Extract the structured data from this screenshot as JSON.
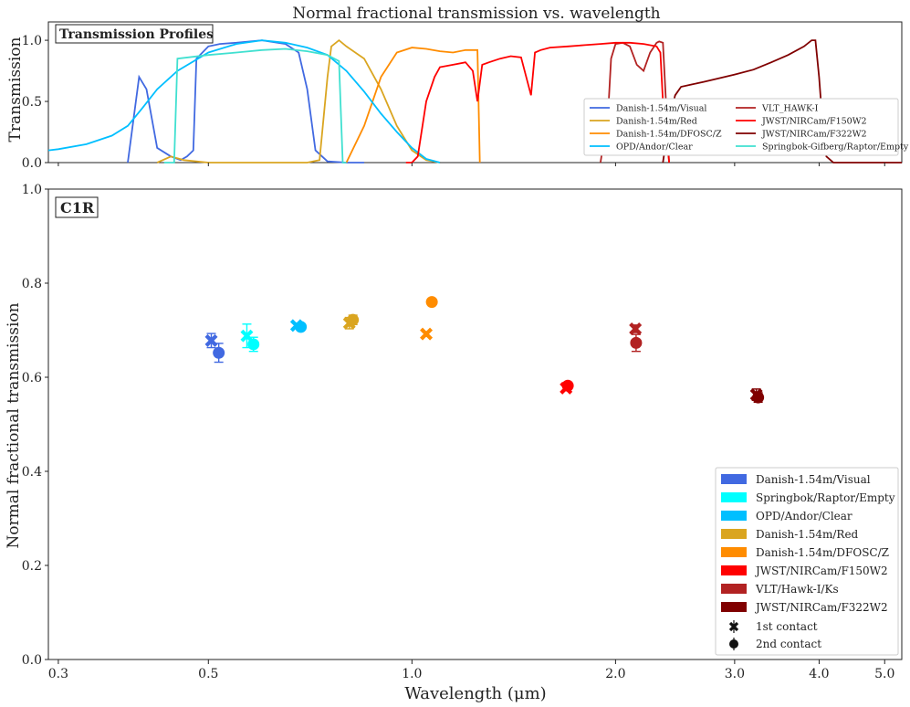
{
  "figure": {
    "title": "Normal fractional transmission vs. wavelength"
  },
  "chart_data": [
    {
      "type": "line",
      "panel_label": "Transmission Profiles",
      "ylabel": "Transmission",
      "xscale": "log",
      "xlim": [
        0.29,
        5.3
      ],
      "ylim": [
        0,
        1.15
      ],
      "yticks": [
        "0.0",
        "0.5",
        "1.0"
      ],
      "grid": false,
      "legend_position": "lower-right",
      "series": [
        {
          "name": "Danish-1.54m/Visual",
          "color": "#4169e1",
          "x": [
            0.38,
            0.395,
            0.405,
            0.42,
            0.44,
            0.455,
            0.465,
            0.475,
            0.48,
            0.49,
            0.5,
            0.52,
            0.55,
            0.6,
            0.65,
            0.68,
            0.7,
            0.72,
            0.75,
            0.8,
            0.85
          ],
          "y": [
            0,
            0.7,
            0.6,
            0.12,
            0.05,
            0.02,
            0.05,
            0.1,
            0.85,
            0.9,
            0.95,
            0.97,
            0.98,
            1.0,
            0.97,
            0.9,
            0.6,
            0.1,
            0.01,
            0,
            0
          ]
        },
        {
          "name": "Danish-1.54m/Red",
          "color": "#daa520",
          "x": [
            0.42,
            0.44,
            0.46,
            0.5,
            0.55,
            0.6,
            0.65,
            0.7,
            0.73,
            0.75,
            0.76,
            0.78,
            0.8,
            0.85,
            0.9,
            0.95,
            1.0,
            1.05,
            1.1
          ],
          "y": [
            0,
            0.05,
            0.02,
            0,
            0,
            0,
            0,
            0,
            0.02,
            0.7,
            0.95,
            1.0,
            0.95,
            0.85,
            0.6,
            0.3,
            0.1,
            0.02,
            0
          ]
        },
        {
          "name": "Danish-1.54m/DFOSC/Z",
          "color": "#ff8c00",
          "x": [
            0.8,
            0.85,
            0.9,
            0.95,
            1.0,
            1.05,
            1.1,
            1.15,
            1.2,
            1.25,
            1.26
          ],
          "y": [
            0,
            0.3,
            0.7,
            0.9,
            0.94,
            0.93,
            0.91,
            0.9,
            0.92,
            0.92,
            0
          ]
        },
        {
          "name": "OPD/Andor/Clear",
          "color": "#00bfff",
          "x": [
            0.29,
            0.3,
            0.33,
            0.36,
            0.38,
            0.4,
            0.42,
            0.45,
            0.5,
            0.55,
            0.6,
            0.65,
            0.7,
            0.75,
            0.8,
            0.85,
            0.9,
            0.95,
            1.0,
            1.05,
            1.1
          ],
          "y": [
            0.1,
            0.11,
            0.15,
            0.22,
            0.3,
            0.45,
            0.6,
            0.75,
            0.9,
            0.97,
            1.0,
            0.98,
            0.94,
            0.88,
            0.75,
            0.58,
            0.4,
            0.25,
            0.12,
            0.03,
            0
          ]
        },
        {
          "name": "VLT_HAWK-I",
          "color": "#b22222",
          "x": [
            1.9,
            1.95,
            1.97,
            2.0,
            2.05,
            2.1,
            2.15,
            2.2,
            2.25,
            2.3,
            2.32,
            2.35,
            2.4
          ],
          "y": [
            0,
            0.4,
            0.85,
            0.97,
            0.98,
            0.95,
            0.8,
            0.75,
            0.9,
            0.98,
            0.99,
            0.98,
            0
          ]
        },
        {
          "name": "JWST/NIRCam/F150W2",
          "color": "#ff0000",
          "x": [
            0.98,
            1.0,
            1.02,
            1.05,
            1.08,
            1.1,
            1.15,
            1.2,
            1.23,
            1.25,
            1.27,
            1.3,
            1.35,
            1.4,
            1.45,
            1.5,
            1.52,
            1.55,
            1.6,
            1.7,
            1.8,
            1.9,
            2.0,
            2.1,
            2.2,
            2.3,
            2.33,
            2.35,
            2.4
          ],
          "y": [
            0,
            0,
            0.05,
            0.5,
            0.7,
            0.78,
            0.8,
            0.82,
            0.75,
            0.5,
            0.8,
            0.82,
            0.85,
            0.87,
            0.86,
            0.55,
            0.9,
            0.92,
            0.94,
            0.95,
            0.96,
            0.97,
            0.98,
            0.98,
            0.97,
            0.95,
            0.9,
            0.5,
            0
          ]
        },
        {
          "name": "JWST/NIRCam/F322W2",
          "color": "#800000",
          "x": [
            2.35,
            2.4,
            2.45,
            2.5,
            2.6,
            2.7,
            2.8,
            3.0,
            3.2,
            3.4,
            3.6,
            3.8,
            3.9,
            3.95,
            4.0,
            4.05,
            4.1,
            4.2,
            5.3
          ],
          "y": [
            0,
            0.35,
            0.55,
            0.62,
            0.64,
            0.66,
            0.68,
            0.72,
            0.76,
            0.82,
            0.88,
            0.95,
            1.0,
            1.0,
            0.7,
            0.3,
            0.05,
            0,
            0
          ]
        },
        {
          "name": "Springbok-Gifberg/Raptor/Empty",
          "color": "#40e0d0",
          "x": [
            0.43,
            0.445,
            0.45,
            0.5,
            0.55,
            0.6,
            0.65,
            0.7,
            0.75,
            0.78,
            0.79,
            0.8
          ],
          "y": [
            0,
            0,
            0.85,
            0.88,
            0.9,
            0.92,
            0.93,
            0.91,
            0.88,
            0.83,
            0,
            0
          ]
        }
      ]
    },
    {
      "type": "scatter",
      "panel_label": "C1R",
      "xlabel": "Wavelength (μm)",
      "ylabel": "Normal fractional transmission",
      "xscale": "log",
      "xlim": [
        0.29,
        5.3
      ],
      "ylim": [
        0.0,
        1.0
      ],
      "xticks": [
        "0.3",
        "0.5",
        "1.0",
        "2.0",
        "3.0",
        "4.0",
        "5.0"
      ],
      "yticks": [
        "0.0",
        "0.2",
        "0.4",
        "0.6",
        "0.8",
        "1.0"
      ],
      "grid": false,
      "legend_position": "lower-right",
      "legend_markers": [
        {
          "label": "1st contact",
          "marker": "x"
        },
        {
          "label": "2nd contact",
          "marker": "o"
        }
      ],
      "series": [
        {
          "name": "Danish-1.54m/Visual",
          "color": "#4169e1",
          "first_contact": {
            "x": 0.505,
            "y": 0.678,
            "err": 0.015
          },
          "second_contact": {
            "x": 0.518,
            "y": 0.652,
            "err": 0.02
          }
        },
        {
          "name": "Springbok/Raptor/Empty",
          "color": "#00ffff",
          "first_contact": {
            "x": 0.57,
            "y": 0.688,
            "err": 0.025
          },
          "second_contact": {
            "x": 0.583,
            "y": 0.67,
            "err": 0.015
          }
        },
        {
          "name": "OPD/Andor/Clear",
          "color": "#00bfff",
          "first_contact": {
            "x": 0.675,
            "y": 0.71,
            "err": 0.005
          },
          "second_contact": {
            "x": 0.685,
            "y": 0.707,
            "err": 0.005
          }
        },
        {
          "name": "Danish-1.54m/Red",
          "color": "#daa520",
          "first_contact": {
            "x": 0.808,
            "y": 0.715,
            "err": 0.012
          },
          "second_contact": {
            "x": 0.818,
            "y": 0.722,
            "err": 0.01
          }
        },
        {
          "name": "Danish-1.54m/DFOSC/Z",
          "color": "#ff8c00",
          "first_contact": {
            "x": 1.05,
            "y": 0.692,
            "err": 0.005
          },
          "second_contact": {
            "x": 1.07,
            "y": 0.76,
            "err": 0.005
          }
        },
        {
          "name": "JWST/NIRCam/F150W2",
          "color": "#ff0000",
          "first_contact": {
            "x": 1.69,
            "y": 0.577,
            "err": 0.005
          },
          "second_contact": {
            "x": 1.7,
            "y": 0.582,
            "err": 0.005
          }
        },
        {
          "name": "VLT/Hawk-I/Ks",
          "color": "#b22222",
          "first_contact": {
            "x": 2.14,
            "y": 0.703,
            "err": 0.008
          },
          "second_contact": {
            "x": 2.145,
            "y": 0.673,
            "err": 0.018
          }
        },
        {
          "name": "JWST/NIRCam/F322W2",
          "color": "#800000",
          "first_contact": {
            "x": 3.23,
            "y": 0.563,
            "err": 0.012
          },
          "second_contact": {
            "x": 3.25,
            "y": 0.557,
            "err": 0.01
          }
        }
      ]
    }
  ]
}
